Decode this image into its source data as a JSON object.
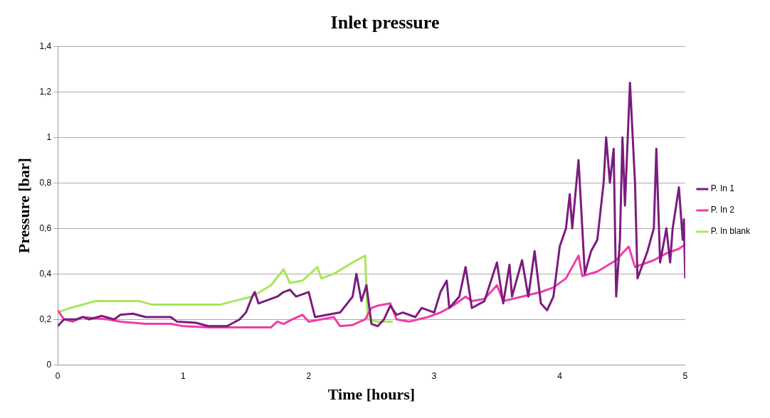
{
  "chart_data": {
    "type": "line",
    "title": "Inlet pressure",
    "xlabel": "Time [hours]",
    "ylabel": "Pressure [bar]",
    "xlim": [
      0,
      5
    ],
    "xticks": [
      0,
      1,
      2,
      3,
      4,
      5
    ],
    "ylim": [
      0,
      1.4
    ],
    "yticks": [
      0,
      {
        "value": 0.2,
        "label": "0,2"
      },
      {
        "value": 0.4,
        "label": "0,4"
      },
      {
        "value": 0.6,
        "label": "0,6"
      },
      {
        "value": 0.8,
        "label": "0,8"
      },
      1,
      {
        "value": 1.2,
        "label": "1,2"
      },
      {
        "value": 1.4,
        "label": "1,4"
      }
    ],
    "grid": "y",
    "legend": "right",
    "marker": "none",
    "line_style": "solid",
    "series": [
      {
        "name": "P. In 1",
        "color": "#7b1c7d",
        "x": [
          0,
          0.05,
          0.15,
          0.2,
          0.25,
          0.35,
          0.45,
          0.5,
          0.6,
          0.7,
          0.9,
          0.95,
          1.1,
          1.2,
          1.35,
          1.45,
          1.5,
          1.55,
          1.57,
          1.6,
          1.7,
          1.75,
          1.8,
          1.85,
          1.9,
          2,
          2.05,
          2.15,
          2.25,
          2.35,
          2.38,
          2.42,
          2.46,
          2.5,
          2.55,
          2.6,
          2.65,
          2.7,
          2.75,
          2.85,
          2.9,
          3,
          3.05,
          3.1,
          3.12,
          3.2,
          3.25,
          3.3,
          3.4,
          3.5,
          3.55,
          3.6,
          3.62,
          3.7,
          3.75,
          3.8,
          3.85,
          3.9,
          3.95,
          4,
          4.05,
          4.08,
          4.1,
          4.15,
          4.2,
          4.25,
          4.3,
          4.35,
          4.37,
          4.4,
          4.43,
          4.45,
          4.48,
          4.5,
          4.52,
          4.56,
          4.6,
          4.62,
          4.7,
          4.75,
          4.77,
          4.8,
          4.85,
          4.88,
          4.9,
          4.95,
          4.98,
          4.99,
          5
        ],
        "values": [
          0.17,
          0.2,
          0.2,
          0.21,
          0.2,
          0.215,
          0.2,
          0.22,
          0.225,
          0.21,
          0.21,
          0.19,
          0.185,
          0.17,
          0.17,
          0.2,
          0.23,
          0.3,
          0.32,
          0.27,
          0.29,
          0.3,
          0.32,
          0.33,
          0.3,
          0.32,
          0.21,
          0.22,
          0.23,
          0.3,
          0.4,
          0.28,
          0.35,
          0.18,
          0.17,
          0.2,
          0.26,
          0.22,
          0.23,
          0.21,
          0.25,
          0.23,
          0.32,
          0.37,
          0.25,
          0.3,
          0.43,
          0.25,
          0.28,
          0.45,
          0.27,
          0.44,
          0.3,
          0.46,
          0.3,
          0.5,
          0.27,
          0.24,
          0.3,
          0.52,
          0.6,
          0.75,
          0.6,
          0.9,
          0.4,
          0.5,
          0.55,
          0.8,
          1.0,
          0.8,
          0.95,
          0.3,
          0.55,
          1.0,
          0.7,
          1.24,
          0.8,
          0.38,
          0.5,
          0.6,
          0.95,
          0.45,
          0.6,
          0.45,
          0.6,
          0.78,
          0.55,
          0.64,
          0.38
        ]
      },
      {
        "name": "P. In 2",
        "color": "#f03ca8",
        "x": [
          0,
          0.05,
          0.12,
          0.2,
          0.4,
          0.5,
          0.7,
          0.9,
          1,
          1.2,
          1.5,
          1.7,
          1.75,
          1.8,
          1.87,
          1.95,
          2,
          2.1,
          2.2,
          2.25,
          2.35,
          2.45,
          2.5,
          2.55,
          2.65,
          2.7,
          2.8,
          2.95,
          3.05,
          3.15,
          3.25,
          3.3,
          3.4,
          3.5,
          3.55,
          3.7,
          3.85,
          3.95,
          4.05,
          4.15,
          4.18,
          4.3,
          4.45,
          4.55,
          4.6,
          4.75,
          4.85,
          4.95,
          5
        ],
        "values": [
          0.24,
          0.2,
          0.19,
          0.21,
          0.2,
          0.19,
          0.18,
          0.18,
          0.17,
          0.165,
          0.165,
          0.165,
          0.19,
          0.18,
          0.2,
          0.22,
          0.19,
          0.2,
          0.21,
          0.17,
          0.175,
          0.2,
          0.25,
          0.26,
          0.27,
          0.2,
          0.19,
          0.21,
          0.23,
          0.26,
          0.3,
          0.28,
          0.29,
          0.35,
          0.28,
          0.3,
          0.32,
          0.34,
          0.38,
          0.48,
          0.39,
          0.41,
          0.46,
          0.52,
          0.43,
          0.46,
          0.49,
          0.51,
          0.53
        ]
      },
      {
        "name": "P. In blank",
        "color": "#a8e65a",
        "x": [
          0,
          0.1,
          0.3,
          0.65,
          0.75,
          1.3,
          1.4,
          1.55,
          1.7,
          1.8,
          1.85,
          1.95,
          2.07,
          2.1,
          2.2,
          2.35,
          2.45,
          2.47,
          2.55,
          2.67
        ],
        "values": [
          0.23,
          0.25,
          0.28,
          0.28,
          0.265,
          0.265,
          0.28,
          0.3,
          0.35,
          0.42,
          0.36,
          0.37,
          0.43,
          0.38,
          0.4,
          0.45,
          0.48,
          0.2,
          0.19,
          0.19
        ]
      }
    ]
  }
}
